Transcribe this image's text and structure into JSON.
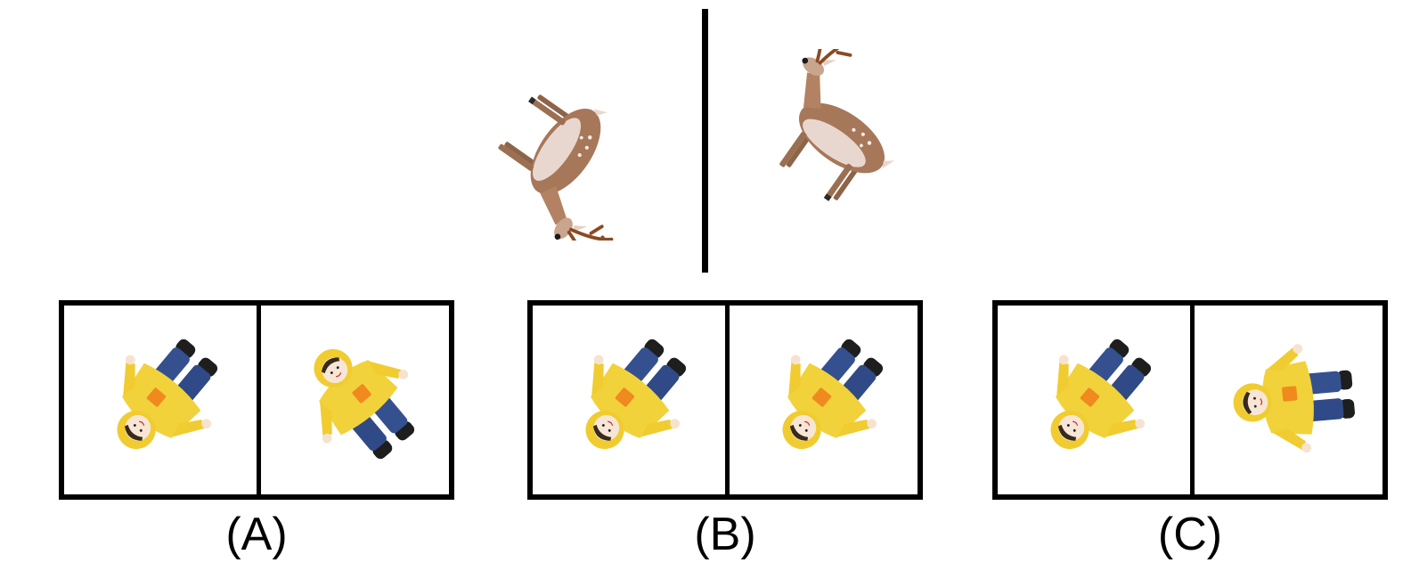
{
  "example": {
    "left_image": "deer-icon",
    "right_image": "deer-icon"
  },
  "options": [
    {
      "label": "(A)",
      "left_image": "doll-icon",
      "right_image": "doll-icon"
    },
    {
      "label": "(B)",
      "left_image": "doll-icon",
      "right_image": "doll-icon"
    },
    {
      "label": "(C)",
      "left_image": "doll-icon",
      "right_image": "doll-icon"
    }
  ],
  "colors": {
    "raincoat": "#f2d23a",
    "pocket": "#f08a1e",
    "jeans": "#2f4a86",
    "boots": "#1e1e1e",
    "deer_body": "#a7775a",
    "deer_belly": "#e8d7cf",
    "antler": "#8b4a22"
  }
}
